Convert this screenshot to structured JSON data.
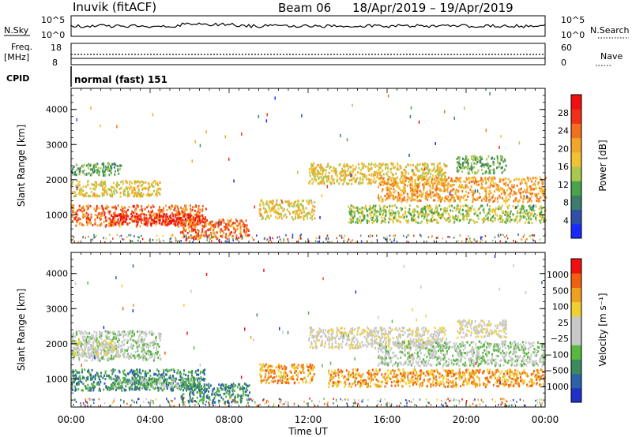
{
  "header": {
    "station": "Inuvik (fitACF)",
    "beam": "Beam 06",
    "date_range": "18/Apr/2019 – 19/Apr/2019"
  },
  "top_panels": {
    "nsky_label": "N.Sky",
    "nsky_top": "10^5",
    "nsky_bottom": "10^0",
    "nsearch_label": "N.Search",
    "nsearch_top": "10^5",
    "nsearch_bottom": "10^0",
    "freq_label_1": "Freq.",
    "freq_label_2": "[MHz]",
    "freq_top": "18",
    "freq_bottom": "8",
    "nave_label": "Nave",
    "nave_top": "60",
    "nave_bottom": "0",
    "cpid_label": "CPID",
    "cpid_text": "normal (fast) 151"
  },
  "chart_data": [
    {
      "type": "heatmap",
      "name_key": "power",
      "ylabel": "Slant Range [km]",
      "yticks": [
        "1000",
        "2000",
        "3000",
        "4000"
      ],
      "ylim": [
        200,
        4600
      ],
      "xlim": [
        0,
        24
      ],
      "colorbar_label": "Power [dB]",
      "colorbar_ticks": [
        "28",
        "24",
        "20",
        "16",
        "12",
        "8",
        "4"
      ],
      "colors": [
        "#1a2aff",
        "#2f4fa8",
        "#3b7d6a",
        "#4aa24a",
        "#a8c850",
        "#f2c232",
        "#f2a52a",
        "#f07020",
        "#f03018",
        "#f01010"
      ],
      "bands": [
        {
          "t0": 0.0,
          "t1": 6.8,
          "r0": 700,
          "r1": 1300,
          "level": 7
        },
        {
          "t0": 2.0,
          "t1": 6.5,
          "r0": 750,
          "r1": 1050,
          "level": 9
        },
        {
          "t0": 0.0,
          "t1": 4.5,
          "r0": 1550,
          "r1": 2000,
          "level": 5
        },
        {
          "t0": 0.0,
          "t1": 2.5,
          "r0": 2150,
          "r1": 2500,
          "level": 3
        },
        {
          "t0": 5.5,
          "t1": 9.0,
          "r0": 350,
          "r1": 900,
          "level": 7
        },
        {
          "t0": 9.5,
          "t1": 12.3,
          "r0": 900,
          "r1": 1450,
          "level": 5
        },
        {
          "t0": 12.0,
          "t1": 19.0,
          "r0": 1900,
          "r1": 2500,
          "level": 5
        },
        {
          "t0": 15.5,
          "t1": 24.0,
          "r0": 1400,
          "r1": 2100,
          "level": 6
        },
        {
          "t0": 14.0,
          "t1": 24.0,
          "r0": 800,
          "r1": 1300,
          "level": 4
        },
        {
          "t0": 19.5,
          "t1": 22.0,
          "r0": 2200,
          "r1": 2700,
          "level": 3
        }
      ]
    },
    {
      "type": "heatmap",
      "name_key": "velocity",
      "ylabel": "Slant Range [km]",
      "yticks": [
        "1000",
        "2000",
        "3000",
        "4000"
      ],
      "ylim": [
        200,
        4600
      ],
      "xlim": [
        0,
        24
      ],
      "colorbar_label": "Velocity [m s⁻¹]",
      "colorbar_ticks": [
        "1000",
        "500",
        "100",
        "25",
        "−25",
        "−100",
        "−500",
        "−1000"
      ],
      "colors": [
        "#2030c8",
        "#2c62a8",
        "#3c8a5e",
        "#58b840",
        "#c8c8c8",
        "#c8c8c8",
        "#f0d030",
        "#f0a020",
        "#f06010",
        "#f01010"
      ],
      "bands": [
        {
          "t0": 0.0,
          "t1": 6.8,
          "r0": 700,
          "r1": 1300,
          "level": 2
        },
        {
          "t0": 2.0,
          "t1": 6.5,
          "r0": 750,
          "r1": 1050,
          "level": 3
        },
        {
          "t0": 0.0,
          "t1": 4.5,
          "r0": 1550,
          "r1": 2400,
          "level": 4
        },
        {
          "t0": 0.0,
          "t1": 2.5,
          "r0": 1650,
          "r1": 2100,
          "level": 5
        },
        {
          "t0": 5.5,
          "t1": 9.0,
          "r0": 350,
          "r1": 900,
          "level": 2
        },
        {
          "t0": 9.5,
          "t1": 12.3,
          "r0": 900,
          "r1": 1450,
          "level": 7
        },
        {
          "t0": 12.0,
          "t1": 19.0,
          "r0": 1900,
          "r1": 2500,
          "level": 5
        },
        {
          "t0": 15.5,
          "t1": 24.0,
          "r0": 1400,
          "r1": 2100,
          "level": 4
        },
        {
          "t0": 13.0,
          "t1": 24.0,
          "r0": 800,
          "r1": 1300,
          "level": 7
        },
        {
          "t0": 19.5,
          "t1": 22.0,
          "r0": 2200,
          "r1": 2700,
          "level": 5
        }
      ]
    }
  ],
  "xaxis": {
    "label": "Time UT",
    "ticks": [
      "00:00",
      "04:00",
      "08:00",
      "12:00",
      "16:00",
      "20:00",
      "00:00"
    ]
  }
}
